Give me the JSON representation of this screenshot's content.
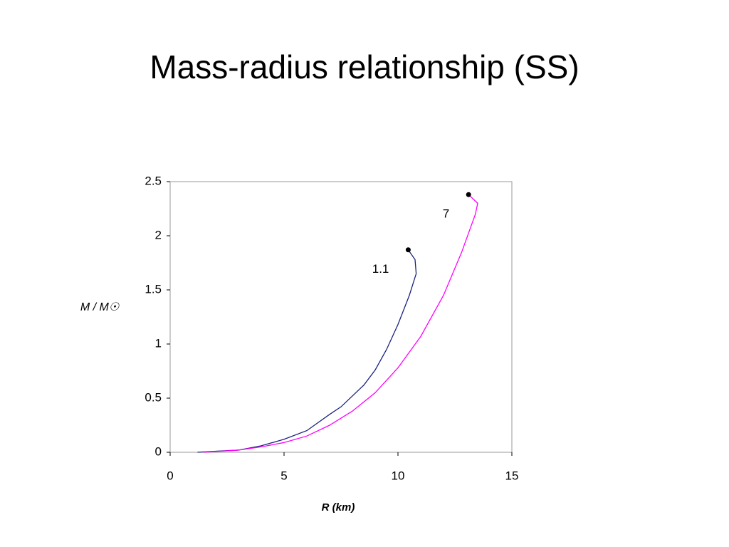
{
  "chart_data": {
    "type": "line",
    "title": "Mass-radius relationship (SS)",
    "x_label": "R (km)",
    "y_label": "M / M☉",
    "xlim": [
      0,
      15
    ],
    "xticks": [
      0,
      5,
      10,
      15
    ],
    "ylim": [
      0,
      2.5
    ],
    "yticks": [
      0,
      0.5,
      1,
      1.5,
      2,
      2.5
    ],
    "grid": false,
    "series": [
      {
        "name": "1.1",
        "color": "#1a237e",
        "x": [
          1.2,
          2,
          3,
          4,
          5,
          6,
          7,
          7.5,
          8,
          8.5,
          9,
          9.5,
          10,
          10.5,
          10.8,
          10.75,
          10.45
        ],
        "values": [
          0,
          0.01,
          0.02,
          0.06,
          0.12,
          0.2,
          0.35,
          0.42,
          0.52,
          0.62,
          0.76,
          0.95,
          1.18,
          1.45,
          1.65,
          1.78,
          1.87
        ]
      },
      {
        "name": "7",
        "color": "#ff00ff",
        "x": [
          1.5,
          3,
          4,
          5,
          6,
          7,
          8,
          9,
          10,
          11,
          12,
          12.8,
          13.4,
          13.5,
          13.1
        ],
        "values": [
          0,
          0.02,
          0.05,
          0.09,
          0.15,
          0.25,
          0.38,
          0.55,
          0.78,
          1.07,
          1.45,
          1.85,
          2.2,
          2.3,
          2.38
        ]
      }
    ]
  }
}
